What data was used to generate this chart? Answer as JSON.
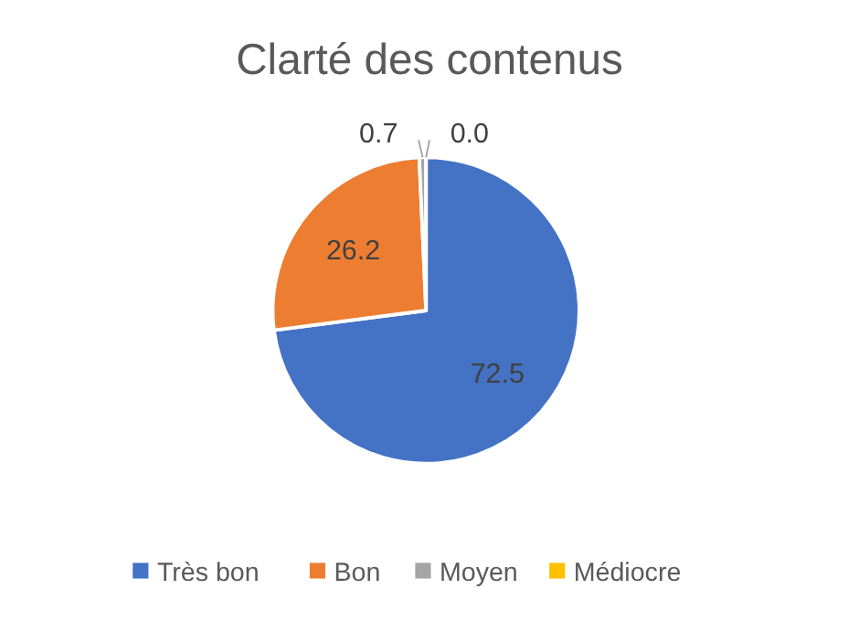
{
  "chart_data": {
    "type": "pie",
    "title": "Clarté des contenus",
    "categories": [
      "Très bon",
      "Bon",
      "Moyen",
      "Médiocre"
    ],
    "values": [
      72.5,
      26.2,
      0.7,
      0.0
    ],
    "value_labels": [
      "72.5",
      "26.2",
      "0.7",
      "0.0"
    ],
    "colors": [
      "#4472c4",
      "#ed7d31",
      "#a5a5a5",
      "#ffc000"
    ],
    "legend": "bottom"
  }
}
